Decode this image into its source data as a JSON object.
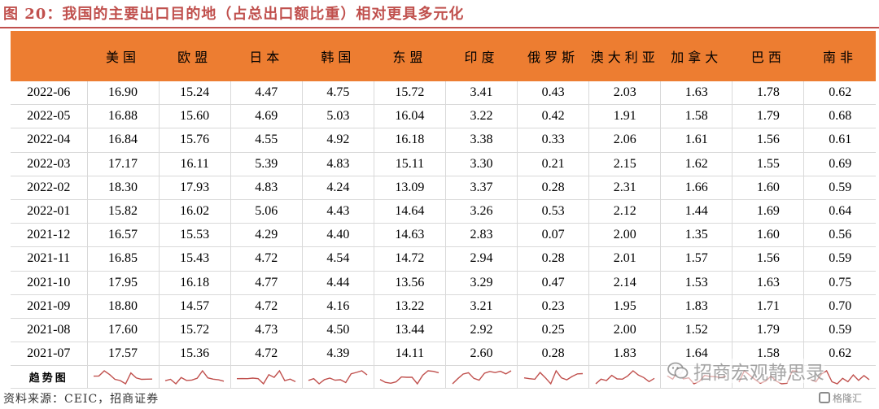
{
  "title": "图 20：我国的主要出口目的地（占总出口额比重）相对更具多元化",
  "table": {
    "corner": "",
    "columns": [
      "美国",
      "欧盟",
      "日本",
      "韩国",
      "东盟",
      "印度",
      "俄罗斯",
      "澳大利亚",
      "加拿大",
      "巴西",
      "南非"
    ],
    "rows": [
      {
        "date": "2022-06",
        "values": [
          "16.90",
          "15.24",
          "4.47",
          "4.75",
          "15.72",
          "3.41",
          "0.43",
          "2.03",
          "1.63",
          "1.78",
          "0.62"
        ]
      },
      {
        "date": "2022-05",
        "values": [
          "16.88",
          "15.60",
          "4.69",
          "5.03",
          "16.04",
          "3.22",
          "0.42",
          "1.91",
          "1.58",
          "1.79",
          "0.68"
        ]
      },
      {
        "date": "2022-04",
        "values": [
          "16.84",
          "15.76",
          "4.55",
          "4.92",
          "16.18",
          "3.38",
          "0.33",
          "2.06",
          "1.61",
          "1.56",
          "0.61"
        ]
      },
      {
        "date": "2022-03",
        "values": [
          "17.17",
          "16.11",
          "5.39",
          "4.83",
          "15.11",
          "3.30",
          "0.21",
          "2.15",
          "1.62",
          "1.55",
          "0.69"
        ]
      },
      {
        "date": "2022-02",
        "values": [
          "18.30",
          "17.93",
          "4.83",
          "4.24",
          "13.09",
          "3.37",
          "0.28",
          "2.31",
          "1.66",
          "1.60",
          "0.59"
        ]
      },
      {
        "date": "2022-01",
        "values": [
          "15.82",
          "16.02",
          "5.06",
          "4.43",
          "14.64",
          "3.26",
          "0.53",
          "2.12",
          "1.44",
          "1.69",
          "0.64"
        ]
      },
      {
        "date": "2021-12",
        "values": [
          "16.57",
          "15.53",
          "4.29",
          "4.40",
          "14.63",
          "2.83",
          "0.07",
          "2.00",
          "1.35",
          "1.60",
          "0.56"
        ]
      },
      {
        "date": "2021-11",
        "values": [
          "16.85",
          "15.43",
          "4.72",
          "4.54",
          "14.72",
          "2.94",
          "0.28",
          "2.01",
          "1.57",
          "1.56",
          "0.59"
        ]
      },
      {
        "date": "2021-10",
        "values": [
          "17.95",
          "16.18",
          "4.77",
          "4.44",
          "13.56",
          "3.29",
          "0.47",
          "2.14",
          "1.53",
          "1.63",
          "0.75"
        ]
      },
      {
        "date": "2021-09",
        "values": [
          "18.80",
          "14.57",
          "4.72",
          "4.16",
          "13.22",
          "3.21",
          "0.23",
          "1.95",
          "1.83",
          "1.71",
          "0.70"
        ]
      },
      {
        "date": "2021-08",
        "values": [
          "17.60",
          "15.72",
          "4.73",
          "4.50",
          "13.44",
          "2.92",
          "0.25",
          "2.00",
          "1.52",
          "1.79",
          "0.59"
        ]
      },
      {
        "date": "2021-07",
        "values": [
          "17.57",
          "15.36",
          "4.72",
          "4.39",
          "14.11",
          "2.60",
          "0.28",
          "1.83",
          "1.64",
          "1.58",
          "0.62"
        ]
      }
    ],
    "trend_label": "趋势图",
    "trend_color": "#c0504d"
  },
  "source": "资料来源：CEIC，招商证券",
  "watermark": {
    "text": "招商宏观静思录",
    "icon": "wechat-icon"
  },
  "logo": {
    "text": "格隆汇",
    "icon": "logo-icon"
  },
  "colors": {
    "title": "#c0504d",
    "header_bg": "#ed7d31",
    "grid": "#d9d9d9"
  }
}
